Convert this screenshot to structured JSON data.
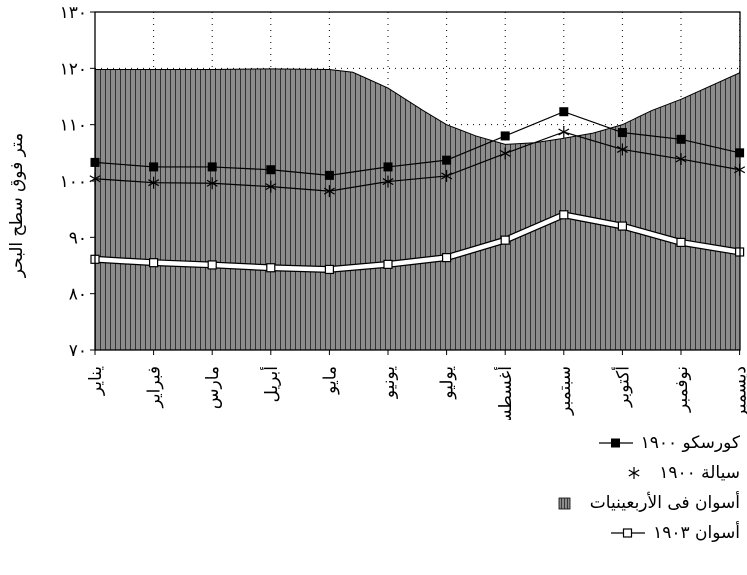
{
  "chart_data": {
    "type": "area",
    "ylabel": "متر فوق سطح البحر",
    "ylim": [
      70,
      130
    ],
    "yticks": [
      70,
      80,
      90,
      100,
      110,
      120,
      130
    ],
    "ytick_labels": [
      "٧٠",
      "٨٠",
      "٩٠",
      "١٠٠",
      "١١٠",
      "١٢٠",
      "١٣٠"
    ],
    "grid": "dotted",
    "legend_position": "below",
    "categories": [
      "يناير",
      "فبراير",
      "مارس",
      "أبريل",
      "مايو",
      "يونيو",
      "يوليو",
      "أغسطس",
      "سبتمبر",
      "أكتوبر",
      "نوفمبر",
      "ديسمبر"
    ],
    "area_boundary": {
      "x": [
        0,
        1,
        2,
        3,
        4,
        4.4,
        5,
        5.6,
        6,
        6.5,
        7,
        7.5,
        7.95,
        8.5,
        9,
        9.5,
        10,
        11
      ],
      "y": [
        119.8,
        119.8,
        119.8,
        119.9,
        119.8,
        119.3,
        116.5,
        112.5,
        110,
        108,
        106.5,
        106.8,
        107.5,
        108.5,
        110,
        112.5,
        114.5,
        119.2
      ]
    },
    "series": [
      {
        "name": "كورسكو ١٩٠٠",
        "marker": "filled-square",
        "values": [
          103.3,
          102.5,
          102.5,
          102.0,
          101.0,
          102.5,
          103.7,
          108.0,
          112.3,
          108.6,
          107.4,
          105.0
        ]
      },
      {
        "name": "سيالة ١٩٠٠",
        "marker": "asterisk",
        "values": [
          100.4,
          99.7,
          99.6,
          99.0,
          98.2,
          99.9,
          100.9,
          104.9,
          108.7,
          105.6,
          103.9,
          102.0
        ]
      },
      {
        "name": "أسوان فى الأربعينيات",
        "marker": "hatched-area"
      },
      {
        "name": "أسوان ١٩٠٣",
        "marker": "hollow-square",
        "values": [
          86.1,
          85.5,
          85.1,
          84.6,
          84.3,
          85.2,
          86.4,
          89.5,
          94.0,
          92.0,
          89.1,
          87.4
        ]
      }
    ]
  },
  "colors": {
    "area_fill": "#8c8c8c",
    "hatch": "#333333",
    "line": "#000000"
  }
}
